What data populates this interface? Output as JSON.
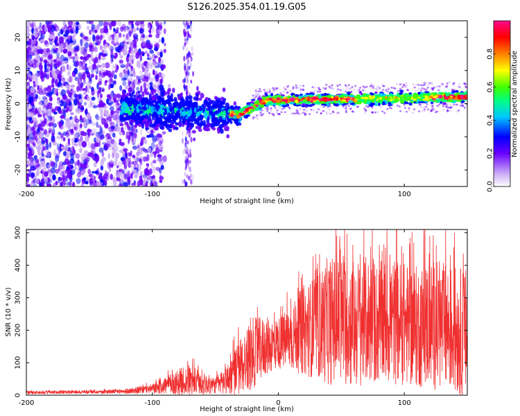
{
  "title": "S126.2025.354.01.19.G05",
  "top_panel": {
    "type": "heatmap",
    "xlabel": "Height of straight line (km)",
    "ylabel": "Frequency (Hz)",
    "xlim": [
      -200,
      150
    ],
    "ylim": [
      -25,
      25
    ],
    "xticks": [
      -200,
      -100,
      0,
      100
    ],
    "yticks": [
      20,
      10,
      0,
      -10,
      -20
    ],
    "colorbar": {
      "label": "Normalized spectral amplitude",
      "range": [
        0,
        1
      ],
      "ticks": [
        "0.0",
        "0.2",
        "0.4",
        "0.6",
        "0.8"
      ],
      "colors": [
        "#ffffff",
        "#c9a8f5",
        "#6a00ff",
        "#0000ff",
        "#00c8ff",
        "#00ff80",
        "#40ff00",
        "#ffff00",
        "#ff8000",
        "#ff0000",
        "#ff0060",
        "#ff1090"
      ]
    }
  },
  "chart_data": {
    "type": "line",
    "title": "S126.2025.354.01.19.G05",
    "xlabel": "Height of straight line (km)",
    "ylabel": "SNR (10 * v/v)",
    "xlim": [
      -200,
      150
    ],
    "ylim": [
      0,
      510
    ],
    "xticks": [
      -200,
      -100,
      0,
      100
    ],
    "yticks": [
      0,
      100,
      200,
      300,
      400,
      500
    ],
    "line_color": "#f03030",
    "envelope": {
      "x": [
        -200,
        -150,
        -120,
        -100,
        -80,
        -70,
        -60,
        -50,
        -40,
        -30,
        -25,
        -20,
        -10,
        0,
        10,
        20,
        30,
        40,
        50,
        60,
        70,
        80,
        90,
        100,
        110,
        120,
        130,
        140,
        150
      ],
      "mean": [
        8,
        10,
        12,
        20,
        40,
        45,
        35,
        30,
        50,
        90,
        110,
        130,
        150,
        160,
        175,
        200,
        210,
        230,
        230,
        220,
        230,
        220,
        230,
        220,
        210,
        220,
        210,
        200,
        190
      ],
      "amplitude": [
        5,
        5,
        8,
        15,
        40,
        50,
        35,
        25,
        50,
        90,
        100,
        110,
        90,
        80,
        100,
        140,
        160,
        200,
        200,
        200,
        200,
        190,
        200,
        190,
        190,
        200,
        200,
        200,
        200
      ]
    }
  }
}
